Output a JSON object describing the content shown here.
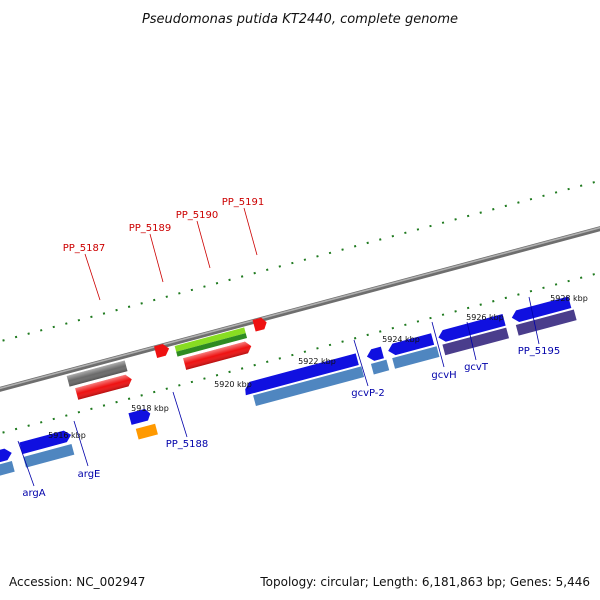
{
  "title": "Pseudomonas putida KT2440, complete genome",
  "accession": "Accession: NC_002947",
  "summary": "Topology: circular; Length: 6,181,863 bp; Genes: 5,446",
  "colors": {
    "backbone": "#8a8a8a",
    "tick_green": "#1f7a1f",
    "label_red": "#cc0000",
    "label_blue": "#0000aa",
    "feature_blue": "#1010e0",
    "feature_steel": "#4f86c0",
    "feature_red": "#ee1111",
    "feature_gray": "#6a6a6a",
    "feature_lime": "#88dd22",
    "feature_orange": "#ff9900",
    "feature_purple": "#4a3d8c"
  },
  "ticks": [
    {
      "label": "5916 kbp"
    },
    {
      "label": "5918 kbp"
    },
    {
      "label": "5920 kbp"
    },
    {
      "label": "5922 kbp"
    },
    {
      "label": "5924 kbp"
    },
    {
      "label": "5926 kbp"
    },
    {
      "label": "5928 kbp"
    }
  ],
  "gene_labels": [
    {
      "name": "PP_5187",
      "strand": "top"
    },
    {
      "name": "PP_5189",
      "strand": "top"
    },
    {
      "name": "PP_5190",
      "strand": "top"
    },
    {
      "name": "PP_5191",
      "strand": "top"
    },
    {
      "name": "argA",
      "strand": "bottom"
    },
    {
      "name": "argE",
      "strand": "bottom"
    },
    {
      "name": "PP_5188",
      "strand": "bottom"
    },
    {
      "name": "gcvP-2",
      "strand": "bottom"
    },
    {
      "name": "gcvH",
      "strand": "bottom"
    },
    {
      "name": "gcvT",
      "strand": "bottom"
    },
    {
      "name": "PP_5195",
      "strand": "bottom"
    }
  ]
}
